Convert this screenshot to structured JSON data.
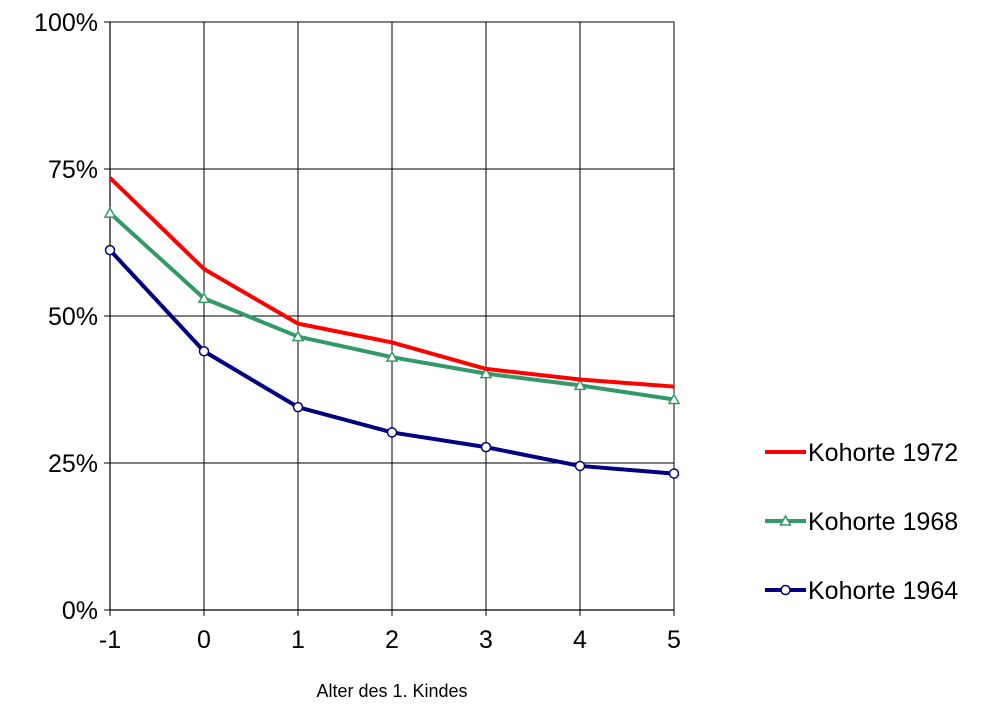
{
  "chart_data": {
    "type": "line",
    "title": "",
    "xlabel": "Alter des 1. Kindes",
    "ylabel": "",
    "x": [
      -1,
      0,
      1,
      2,
      3,
      4,
      5
    ],
    "x_tick_labels": [
      "-1",
      "0",
      "1",
      "2",
      "3",
      "4",
      "5"
    ],
    "ylim": [
      0,
      1
    ],
    "y_ticks": [
      0,
      0.25,
      0.5,
      0.75,
      1
    ],
    "y_tick_labels": [
      "0%",
      "25%",
      "50%",
      "75%",
      "100%"
    ],
    "grid": true,
    "legend_position": "right",
    "series": [
      {
        "name": "Kohorte 1972",
        "color": "#ff0000",
        "marker": "none",
        "values": [
          0.735,
          0.58,
          0.487,
          0.455,
          0.41,
          0.392,
          0.38
        ]
      },
      {
        "name": "Kohorte 1968",
        "color": "#339966",
        "marker": "triangle",
        "values": [
          0.675,
          0.53,
          0.465,
          0.43,
          0.402,
          0.382,
          0.358
        ]
      },
      {
        "name": "Kohorte 1964",
        "color": "#000080",
        "marker": "circle",
        "values": [
          0.612,
          0.44,
          0.345,
          0.302,
          0.277,
          0.245,
          0.232
        ]
      }
    ]
  }
}
